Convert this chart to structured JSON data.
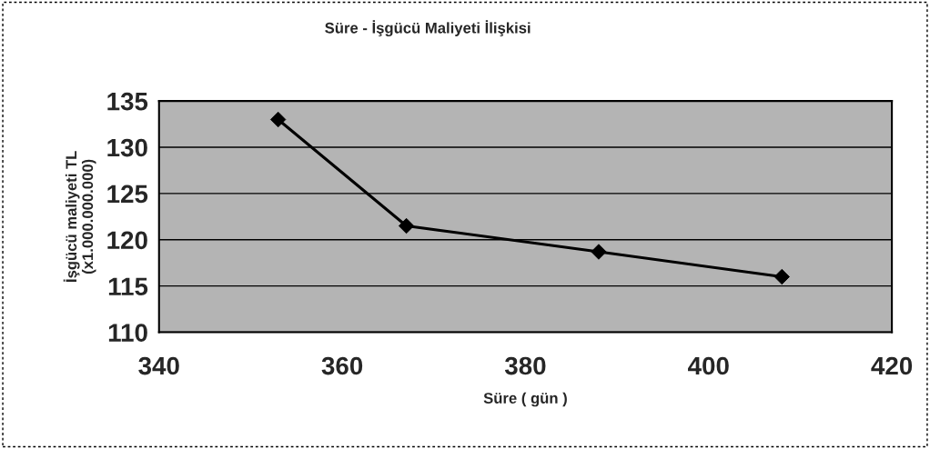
{
  "chart_data": {
    "type": "line",
    "title": "Süre - İşgücü Maliyeti İlişkisi",
    "xlabel": "Süre ( gün )",
    "ylabel": "İşgücü maliyeti TL\n(x1.000.000.000)",
    "x": [
      353,
      367,
      388,
      408
    ],
    "series": [
      {
        "color": "#000000",
        "values": [
          133,
          121.5,
          118.7,
          116
        ]
      }
    ],
    "xlim": [
      340,
      420
    ],
    "xticks": [
      340,
      360,
      380,
      400,
      420
    ],
    "ylim": [
      110,
      135
    ],
    "yticks": [
      110,
      115,
      120,
      125,
      130,
      135
    ],
    "grid": "y",
    "marker": "diamond",
    "line_style": "solid"
  }
}
